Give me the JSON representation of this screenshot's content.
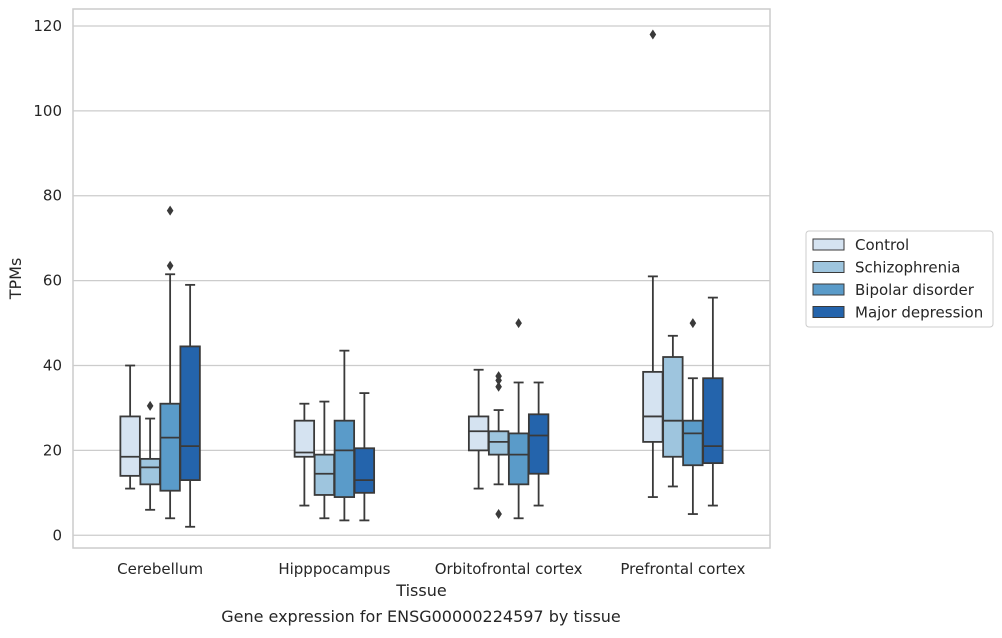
{
  "caption": "Gene expression for ENSG00000224597 by tissue",
  "chart_data": {
    "type": "box",
    "xlabel": "Tissue",
    "ylabel": "TPMs",
    "ylim": [
      -3,
      124
    ],
    "yticks": [
      0,
      20,
      40,
      60,
      80,
      100,
      120
    ],
    "grid": "horizontal",
    "legend_position": "outside-right",
    "categories": [
      "Cerebellum",
      "Hipppocampus",
      "Orbitofrontal cortex",
      "Prefrontal cortex"
    ],
    "series": [
      {
        "name": "Control",
        "color": "#d5e3f1",
        "boxes": [
          {
            "low": 11,
            "q1": 14,
            "median": 18.5,
            "q3": 28,
            "high": 40,
            "outliers": []
          },
          {
            "low": 7,
            "q1": 18.5,
            "median": 19.5,
            "q3": 27,
            "high": 31,
            "outliers": []
          },
          {
            "low": 11,
            "q1": 20,
            "median": 24.5,
            "q3": 28,
            "high": 39,
            "outliers": []
          },
          {
            "low": 9,
            "q1": 22,
            "median": 28,
            "q3": 38.5,
            "high": 61,
            "outliers": [
              118
            ]
          }
        ]
      },
      {
        "name": "Schizophrenia",
        "color": "#9ec5de",
        "boxes": [
          {
            "low": 6,
            "q1": 12,
            "median": 16,
            "q3": 18,
            "high": 27.5,
            "outliers": [
              30.5
            ]
          },
          {
            "low": 4,
            "q1": 9.5,
            "median": 14.5,
            "q3": 19,
            "high": 31.5,
            "outliers": []
          },
          {
            "low": 12,
            "q1": 19,
            "median": 22,
            "q3": 24.5,
            "high": 29.5,
            "outliers": [
              5,
              35,
              36.5,
              37.5
            ]
          },
          {
            "low": 11.5,
            "q1": 18.5,
            "median": 27,
            "q3": 42,
            "high": 47,
            "outliers": []
          }
        ]
      },
      {
        "name": "Bipolar disorder",
        "color": "#5a9bc9",
        "boxes": [
          {
            "low": 4,
            "q1": 10.5,
            "median": 23,
            "q3": 31,
            "high": 61.5,
            "outliers": [
              63.5,
              76.5
            ]
          },
          {
            "low": 3.5,
            "q1": 9,
            "median": 20,
            "q3": 27,
            "high": 43.5,
            "outliers": []
          },
          {
            "low": 4,
            "q1": 12,
            "median": 19,
            "q3": 24,
            "high": 36,
            "outliers": [
              50
            ]
          },
          {
            "low": 5,
            "q1": 16.5,
            "median": 24,
            "q3": 27,
            "high": 37,
            "outliers": [
              50
            ]
          }
        ]
      },
      {
        "name": "Major depression",
        "color": "#2464ac",
        "boxes": [
          {
            "low": 2,
            "q1": 13,
            "median": 21,
            "q3": 44.5,
            "high": 59,
            "outliers": []
          },
          {
            "low": 3.5,
            "q1": 10,
            "median": 13,
            "q3": 20.5,
            "high": 33.5,
            "outliers": []
          },
          {
            "low": 7,
            "q1": 14.5,
            "median": 23.5,
            "q3": 28.5,
            "high": 36,
            "outliers": []
          },
          {
            "low": 7,
            "q1": 17,
            "median": 21,
            "q3": 37,
            "high": 56,
            "outliers": []
          }
        ]
      }
    ]
  }
}
